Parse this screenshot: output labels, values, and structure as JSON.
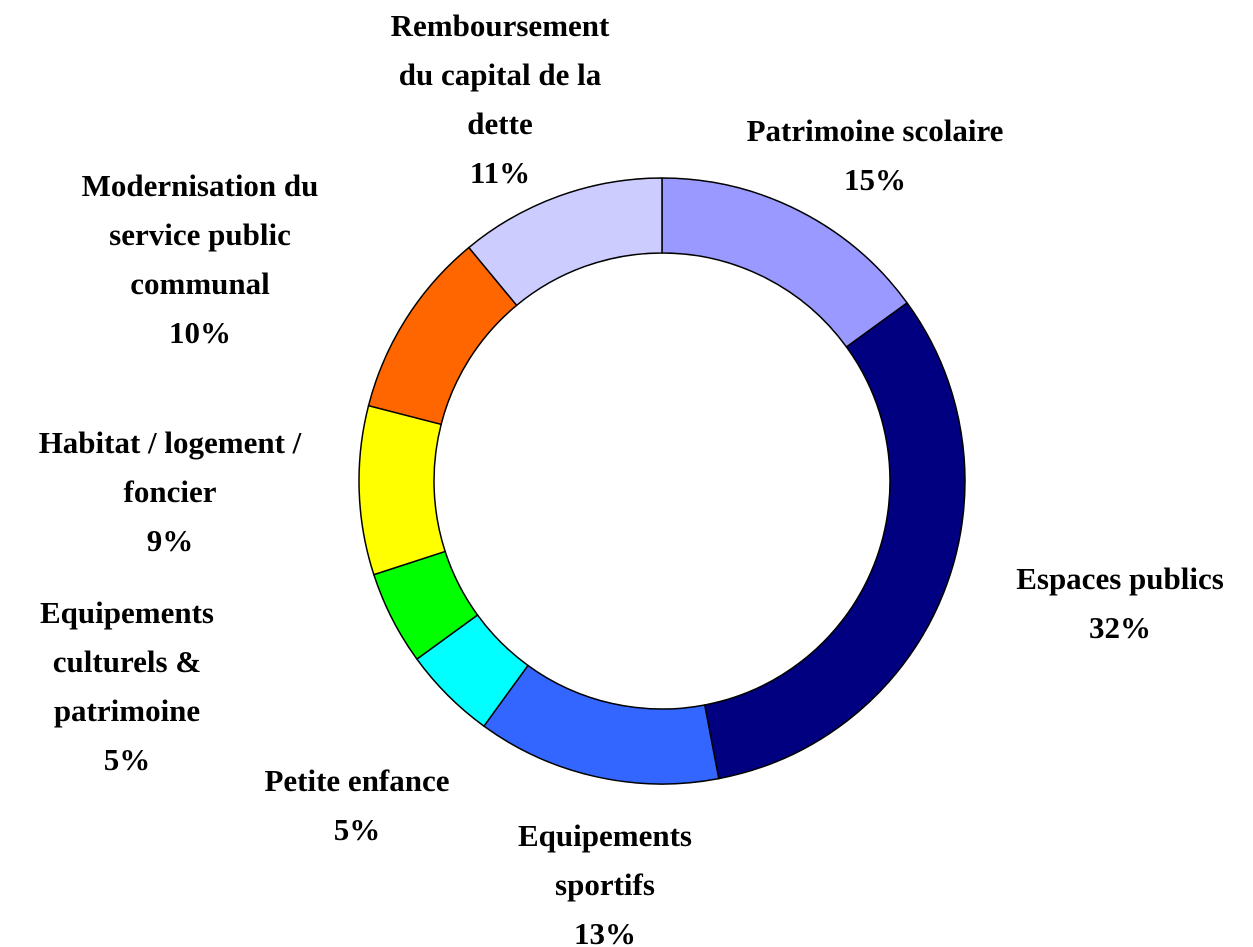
{
  "chart_data": {
    "type": "donut",
    "categories": [
      "Patrimoine scolaire",
      "Espaces publics",
      "Equipements sportifs",
      "Petite enfance",
      "Equipements culturels & patrimoine",
      "Habitat / logement / foncier",
      "Modernisation du service public communal",
      "Remboursement du capital de la dette"
    ],
    "values": [
      15,
      32,
      13,
      5,
      5,
      9,
      10,
      11
    ],
    "value_labels": [
      "15%",
      "32%",
      "13%",
      "5%",
      "5%",
      "9%",
      "10%",
      "11%"
    ],
    "colors": [
      "#9999ff",
      "#000080",
      "#3366ff",
      "#00ffff",
      "#00ff00",
      "#ffff00",
      "#ff6600",
      "#ccccff"
    ]
  }
}
